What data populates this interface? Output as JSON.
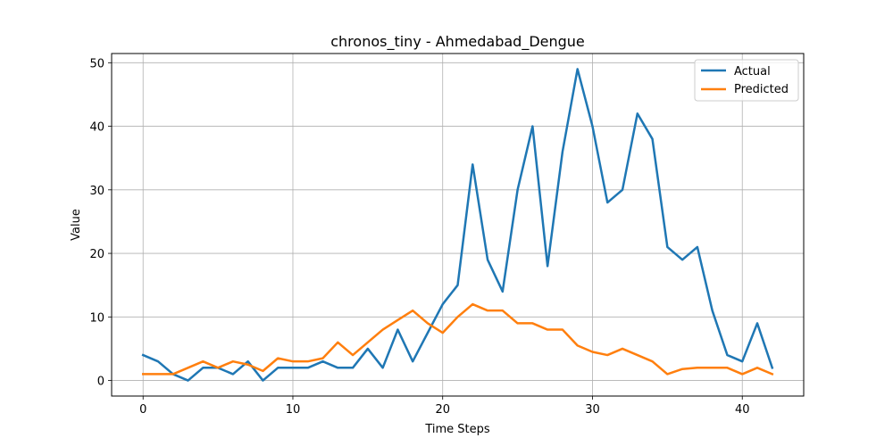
{
  "chart_data": {
    "type": "line",
    "title": "chronos_tiny - Ahmedabad_Dengue",
    "xlabel": "Time Steps",
    "ylabel": "Value",
    "xlim": [
      -2.1,
      44.1
    ],
    "ylim": [
      -2.45,
      51.45
    ],
    "xticks": [
      0,
      10,
      20,
      30,
      40
    ],
    "yticks": [
      0,
      10,
      20,
      30,
      40,
      50
    ],
    "grid": true,
    "legend": "top-right",
    "x": [
      0,
      1,
      2,
      3,
      4,
      5,
      6,
      7,
      8,
      9,
      10,
      11,
      12,
      13,
      14,
      15,
      16,
      17,
      18,
      19,
      20,
      21,
      22,
      23,
      24,
      25,
      26,
      27,
      28,
      29,
      30,
      31,
      32,
      33,
      34,
      35,
      36,
      37,
      38,
      39,
      40,
      41,
      42
    ],
    "series": [
      {
        "name": "Actual",
        "color": "#1f77b4",
        "values": [
          4,
          3,
          1,
          0,
          2,
          2,
          1,
          3,
          0,
          2,
          2,
          2,
          3,
          2,
          2,
          5,
          2,
          8,
          3,
          7.5,
          12,
          15,
          34,
          19,
          14,
          30,
          40,
          18,
          36,
          49,
          40,
          28,
          30,
          42,
          38,
          21,
          19,
          21,
          11,
          4,
          3,
          9,
          2
        ]
      },
      {
        "name": "Predicted",
        "color": "#ff7f0e",
        "values": [
          1,
          1,
          1,
          2,
          3,
          2,
          3,
          2.5,
          1.5,
          3.5,
          3,
          3,
          3.5,
          6,
          4,
          6,
          8,
          9.5,
          11,
          9,
          7.5,
          10,
          12,
          11,
          11,
          9,
          9,
          8,
          8,
          5.5,
          4.5,
          4,
          5,
          4,
          3,
          1,
          1.8,
          2,
          2,
          2,
          1,
          2,
          1
        ]
      }
    ]
  }
}
